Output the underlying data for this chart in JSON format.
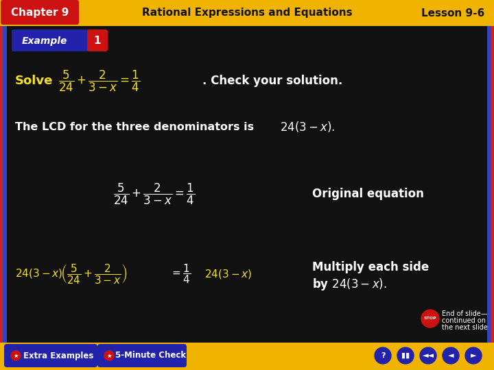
{
  "bg_color": "#111111",
  "header_bg": "#f0b400",
  "header_text_color": "#111111",
  "chapter_bg": "#cc1111",
  "chapter_text": "Chapter 9",
  "header_center": "Rational Expressions and Equations",
  "lesson_text": "Lesson 9-6",
  "example_bg_blue": "#2222aa",
  "example_bg_red": "#cc1111",
  "solve_color": "#f5e020",
  "white": "#ffffff",
  "footer_bg": "#f0b400",
  "border_blue": "#3344bb",
  "border_red": "#cc2222",
  "stop_red": "#cc1111"
}
